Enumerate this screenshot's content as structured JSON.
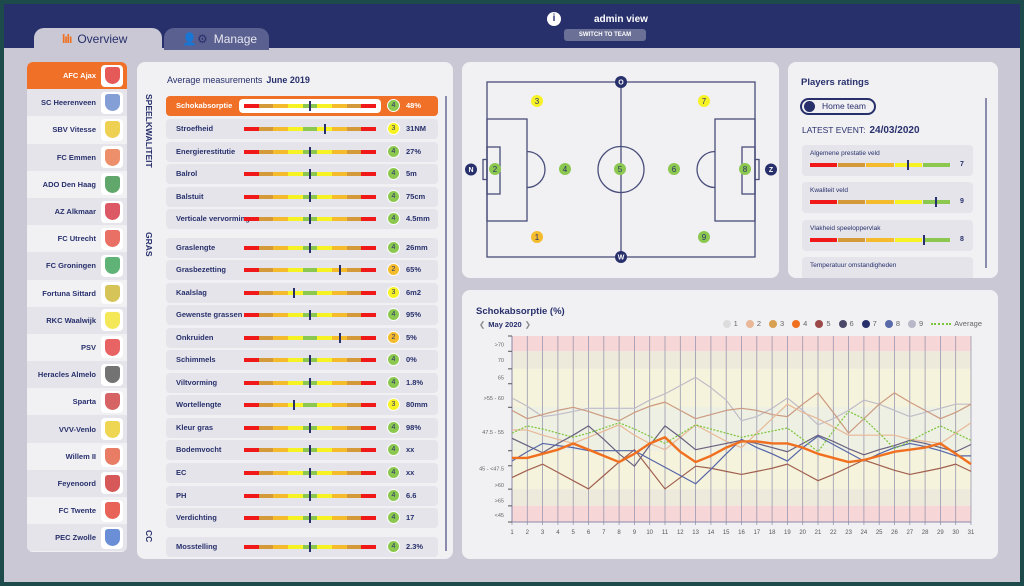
{
  "header": {
    "tabs": [
      {
        "label": "Overview",
        "icon": "bar-chart-icon"
      },
      {
        "label": "Manage",
        "icon": "users-gear-icon"
      }
    ],
    "info_icon": "i",
    "user_label": "admin view",
    "switch_button": "SWITCH TO TEAM"
  },
  "colors": {
    "navy": "#28306c",
    "accent": "#f07028",
    "red": "#f01818",
    "darkorange": "#d49a3a",
    "orange": "#f4bc2c",
    "yellow": "#f6f224",
    "green": "#8cc850"
  },
  "sidebar": {
    "teams": [
      {
        "name": "AFC Ajax",
        "logo": "#d22",
        "active": true
      },
      {
        "name": "SC Heerenveen",
        "logo": "#5b7fc8"
      },
      {
        "name": "SBV Vitesse",
        "logo": "#e8c21a"
      },
      {
        "name": "FC Emmen",
        "logo": "#e86a3a"
      },
      {
        "name": "ADO Den Haag",
        "logo": "#2c8a3a"
      },
      {
        "name": "AZ Alkmaar",
        "logo": "#d02030"
      },
      {
        "name": "FC Utrecht",
        "logo": "#e04030"
      },
      {
        "name": "FC Groningen",
        "logo": "#2a9a4a"
      },
      {
        "name": "Fortuna Sittard",
        "logo": "#c8b020"
      },
      {
        "name": "RKC Waalwijk",
        "logo": "#f0e020"
      },
      {
        "name": "PSV",
        "logo": "#e03030"
      },
      {
        "name": "Heracles Almelo",
        "logo": "#444"
      },
      {
        "name": "Sparta",
        "logo": "#c83030"
      },
      {
        "name": "VVV-Venlo",
        "logo": "#e8c818"
      },
      {
        "name": "Willem II",
        "logo": "#e05030"
      },
      {
        "name": "Feyenoord",
        "logo": "#c82020"
      },
      {
        "name": "FC Twente",
        "logo": "#e03020"
      },
      {
        "name": "PEC Zwolle",
        "logo": "#3a6ac8"
      }
    ]
  },
  "measurements": {
    "title": "Average measurements",
    "period": "June 2019",
    "sections": [
      {
        "label": "SPEELKWALITEIT",
        "rows": [
          {
            "name": "Schokabsorptie",
            "rating": 4,
            "value": "48%",
            "marker": 0.5,
            "active": true
          },
          {
            "name": "Stroefheid",
            "rating": 3,
            "value": "31NM",
            "marker": 0.61
          },
          {
            "name": "Energierestitutie",
            "rating": 4,
            "value": "27%",
            "marker": 0.5
          },
          {
            "name": "Balrol",
            "rating": 4,
            "value": "5m",
            "marker": 0.5
          },
          {
            "name": "Balstuit",
            "rating": 4,
            "value": "75cm",
            "marker": 0.5
          },
          {
            "name": "Verticale vervorming",
            "rating": 4,
            "value": "4.5mm",
            "marker": 0.5
          }
        ]
      },
      {
        "label": "GRAS",
        "rows": [
          {
            "name": "Graslengte",
            "rating": 4,
            "value": "26mm",
            "marker": 0.5
          },
          {
            "name": "Grasbezetting",
            "rating": 2,
            "value": "65%",
            "marker": 0.73
          },
          {
            "name": "Kaalslag",
            "rating": 3,
            "value": "6m2",
            "marker": 0.38
          },
          {
            "name": "Gewenste grassen",
            "rating": 4,
            "value": "95%",
            "marker": 0.5
          },
          {
            "name": "Onkruiden",
            "rating": 2,
            "value": "5%",
            "marker": 0.73
          },
          {
            "name": "Schimmels",
            "rating": 4,
            "value": "0%",
            "marker": 0.5
          },
          {
            "name": "Viltvorming",
            "rating": 4,
            "value": "1.8%",
            "marker": 0.5
          },
          {
            "name": "Wortellengte",
            "rating": 3,
            "value": "80mm",
            "marker": 0.38
          },
          {
            "name": "Kleur gras",
            "rating": 4,
            "value": "98%",
            "marker": 0.5
          },
          {
            "name": "Bodemvocht",
            "rating": 4,
            "value": "xx",
            "marker": 0.5
          },
          {
            "name": "EC",
            "rating": 4,
            "value": "xx",
            "marker": 0.5
          },
          {
            "name": "PH",
            "rating": 4,
            "value": "6.6",
            "marker": 0.5
          },
          {
            "name": "Verdichting",
            "rating": 4,
            "value": "17",
            "marker": 0.5
          }
        ]
      },
      {
        "label": "CC",
        "rows": [
          {
            "name": "Mosstelling",
            "rating": 4,
            "value": "2.3%",
            "marker": 0.5
          }
        ]
      }
    ]
  },
  "field": {
    "directions": {
      "top": "O",
      "bottom": "W",
      "left": "N",
      "right": "Z"
    },
    "points": [
      {
        "label": "3",
        "rating": "yellow"
      },
      {
        "label": "7",
        "rating": "yellow"
      },
      {
        "label": "2",
        "rating": "green"
      },
      {
        "label": "4",
        "rating": "green"
      },
      {
        "label": "5",
        "rating": "green"
      },
      {
        "label": "6",
        "rating": "green"
      },
      {
        "label": "8",
        "rating": "green"
      },
      {
        "label": "1",
        "rating": "orange"
      },
      {
        "label": "9",
        "rating": "green"
      }
    ]
  },
  "ratings": {
    "title": "Players ratings",
    "toggle": "Home team",
    "event_label": "LATEST EVENT:",
    "event_date": "24/03/2020",
    "items": [
      {
        "label": "Algemene prestatie veld",
        "value": "7",
        "level": 0.69
      },
      {
        "label": "Kwaliteit veld",
        "value": "9",
        "level": 0.89
      },
      {
        "label": "Vlakheid speeloppervlak",
        "value": "8",
        "level": 0.8
      },
      {
        "label": "Temperatuur omstandigheden",
        "value": ""
      }
    ]
  },
  "chart_data": {
    "type": "line",
    "title": "Schokabsorptie (%)",
    "period": "May 2020",
    "prev": "❮",
    "next": "❯",
    "x": [
      1,
      2,
      3,
      4,
      5,
      6,
      7,
      8,
      9,
      10,
      11,
      12,
      13,
      14,
      15,
      16,
      17,
      18,
      19,
      20,
      21,
      22,
      23,
      24,
      25,
      26,
      27,
      28,
      29,
      30,
      31
    ],
    "ytick_labels": [
      ">70",
      "70",
      "65",
      ">55 - 60",
      "47.5 - 55",
      "45 - <47.5",
      ">60",
      ">65",
      "<45"
    ],
    "ylim": [
      0,
      9
    ],
    "grid": true,
    "legend": "top-right",
    "legend_items": [
      {
        "name": "1",
        "color": "#dcdcdc"
      },
      {
        "name": "2",
        "color": "#e8b898"
      },
      {
        "name": "3",
        "color": "#d8a050"
      },
      {
        "name": "4",
        "color": "#f07020"
      },
      {
        "name": "5",
        "color": "#9a4848"
      },
      {
        "name": "6",
        "color": "#4a4868"
      },
      {
        "name": "7",
        "color": "#28306c"
      },
      {
        "name": "8",
        "color": "#5a6aa8"
      },
      {
        "name": "9",
        "color": "#b8b8c8"
      },
      {
        "name": "Average",
        "color": "#7cc43a"
      }
    ],
    "series": [
      {
        "name": "9",
        "color": "#c0bcc8",
        "width": 1.2,
        "values": [
          6.0,
          5.6,
          5.1,
          5.2,
          5.35,
          5.5,
          5.5,
          5.5,
          5.5,
          5.9,
          6.2,
          6.6,
          7.0,
          6.5,
          5.9,
          4.9,
          5.1,
          5.5,
          6.0,
          5.4,
          4.7,
          5.0,
          5.4,
          5.9,
          5.7,
          5.4,
          5.1,
          5.3,
          5.5,
          5.7,
          5.7
        ]
      },
      {
        "name": "3",
        "color": "#cc9a80",
        "width": 1.2,
        "values": [
          5.4,
          5.0,
          5.2,
          5.4,
          5.55,
          5.35,
          5.1,
          4.9,
          5.3,
          5.6,
          5.8,
          5.4,
          5.0,
          5.2,
          5.4,
          5.5,
          5.4,
          5.2,
          5.1,
          5.7,
          6.25,
          5.3,
          4.3,
          5.0,
          5.7,
          6.25,
          5.8,
          5.4,
          5.0,
          5.3,
          5.7
        ]
      },
      {
        "name": "2",
        "color": "#e8b898",
        "width": 1.2,
        "values": [
          4.45,
          4.45,
          4.2,
          4.0,
          3.8,
          4.1,
          4.4,
          4.7,
          4.2,
          3.8,
          3.5,
          4.1,
          4.7,
          4.3,
          3.9,
          3.6,
          4.3,
          5.0,
          5.7,
          5.3,
          5.0,
          4.6,
          4.2,
          4.2,
          4.2,
          4.2,
          4.0,
          3.9,
          3.8,
          4.3,
          4.8
        ]
      },
      {
        "name": "5",
        "color": "#a06050",
        "width": 1.2,
        "values": [
          2.15,
          2.5,
          2.8,
          2.4,
          2.0,
          1.6,
          2.25,
          2.9,
          3.5,
          2.55,
          1.6,
          2.15,
          2.7,
          2.6,
          2.45,
          2.3,
          2.45,
          2.6,
          2.8,
          2.4,
          2.0,
          2.3,
          2.65,
          3.0,
          2.75,
          2.5,
          2.3,
          2.45,
          2.6,
          2.8,
          2.45
        ]
      },
      {
        "name": "6",
        "color": "#6a6080",
        "width": 1.2,
        "values": [
          4.05,
          3.7,
          3.35,
          3.8,
          4.2,
          4.65,
          4.0,
          3.3,
          2.7,
          3.7,
          4.65,
          4.1,
          3.5,
          3.65,
          3.8,
          3.95,
          3.8,
          3.6,
          3.4,
          3.8,
          4.2,
          3.9,
          3.55,
          3.25,
          3.5,
          3.7,
          3.95,
          3.8,
          3.6,
          3.4,
          3.75
        ]
      },
      {
        "name": "8",
        "color": "#5565a8",
        "width": 1.2,
        "values": [
          2.95,
          3.4,
          3.8,
          3.7,
          3.6,
          3.45,
          3.45,
          3.45,
          3.45,
          3.05,
          2.65,
          2.25,
          1.85,
          2.55,
          3.3,
          4.0,
          3.6,
          3.3,
          2.95,
          3.6,
          4.15,
          3.75,
          3.35,
          2.95,
          3.3,
          3.6,
          3.8,
          3.65,
          3.45,
          3.2,
          3.2
        ]
      },
      {
        "name": "Average",
        "color": "#7cc43a",
        "width": 1.2,
        "dashed": true,
        "values": [
          4.3,
          4.65,
          4.5,
          4.3,
          4.1,
          4.3,
          4.55,
          4.8,
          4.5,
          4.15,
          3.8,
          4.25,
          4.7,
          4.5,
          4.3,
          4.1,
          4.25,
          4.4,
          4.55,
          4.0,
          3.4,
          4.4,
          5.35,
          5.0,
          4.3,
          3.55,
          3.9,
          4.3,
          4.65,
          4.3,
          3.95
        ]
      },
      {
        "name": "4",
        "color": "#f07020",
        "width": 2.4,
        "values": [
          3.1,
          3.1,
          3.3,
          3.5,
          3.8,
          3.5,
          3.2,
          2.9,
          3.3,
          3.8,
          4.1,
          3.4,
          2.9,
          3.2,
          3.6,
          3.9,
          3.9,
          3.8,
          3.8,
          3.6,
          3.3,
          3.1,
          2.9,
          3.0,
          3.2,
          3.4,
          3.5,
          3.6,
          3.8,
          3.3,
          2.8
        ]
      }
    ]
  }
}
